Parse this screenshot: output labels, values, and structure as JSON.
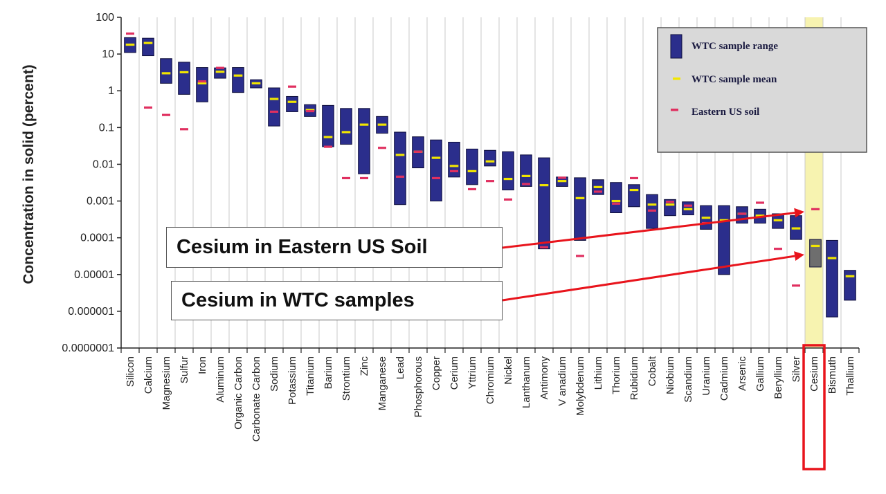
{
  "chart_data": {
    "type": "range-bar",
    "ylabel": "Concentration in solid (percent)",
    "yscale": "log",
    "ylim": [
      1e-07,
      100
    ],
    "yticks": [
      "100",
      "10",
      "1",
      "0.1",
      "0.01",
      "0.001",
      "0.0001",
      "0.00001",
      "0.000001",
      "0.0000001"
    ],
    "legend": {
      "placement": "top-right",
      "items": [
        "WTC sample range",
        "WTC sample mean",
        "Eastern US soil"
      ]
    },
    "colors": {
      "range": "#2b2e8c",
      "mean": "#f2e600",
      "soil": "#e03060",
      "highlight_band": "#f7f3b0",
      "callout_arrow": "#e8141c",
      "legend_bg": "#d9d9d9",
      "cesium_range": "#6e6e6e"
    },
    "highlight": "Cesium",
    "elements": [
      {
        "name": "Silicon",
        "min": 11,
        "max": 28,
        "mean": 18,
        "soil": 36
      },
      {
        "name": "Calcium",
        "min": 9,
        "max": 27,
        "mean": 20,
        "soil": 0.35
      },
      {
        "name": "Magnesium",
        "min": 1.6,
        "max": 7.5,
        "mean": 3,
        "soil": 0.22
      },
      {
        "name": "Sulfur",
        "min": 0.8,
        "max": 6,
        "mean": 3.2,
        "soil": 0.09
      },
      {
        "name": "Iron",
        "min": 0.5,
        "max": 4.3,
        "mean": 1.6,
        "soil": 1.8
      },
      {
        "name": "Aluminum",
        "min": 2.2,
        "max": 4.2,
        "mean": 3.3,
        "soil": 4.2
      },
      {
        "name": "Organic Carbon",
        "min": 0.9,
        "max": 4.3,
        "mean": 2.6,
        "soil": null
      },
      {
        "name": "Carbonate Carbon",
        "min": 1.2,
        "max": 2,
        "mean": 1.6,
        "soil": null
      },
      {
        "name": "Sodium",
        "min": 0.11,
        "max": 1.2,
        "mean": 0.6,
        "soil": 0.27
      },
      {
        "name": "Potassium",
        "min": 0.27,
        "max": 0.7,
        "mean": 0.5,
        "soil": 1.3
      },
      {
        "name": "Titanium",
        "min": 0.2,
        "max": 0.42,
        "mean": 0.3,
        "soil": 0.28
      },
      {
        "name": "Barium",
        "min": 0.03,
        "max": 0.4,
        "mean": 0.055,
        "soil": 0.03
      },
      {
        "name": "Strontium",
        "min": 0.035,
        "max": 0.33,
        "mean": 0.075,
        "soil": 0.0042
      },
      {
        "name": "Zinc",
        "min": 0.0055,
        "max": 0.33,
        "mean": 0.12,
        "soil": 0.0042
      },
      {
        "name": "Manganese",
        "min": 0.07,
        "max": 0.2,
        "mean": 0.12,
        "soil": 0.028
      },
      {
        "name": "Lead",
        "min": 0.0008,
        "max": 0.075,
        "mean": 0.018,
        "soil": 0.0046
      },
      {
        "name": "Phosphorous",
        "min": 0.008,
        "max": 0.056,
        "mean": 0.022,
        "soil": 0.022
      },
      {
        "name": "Copper",
        "min": 0.001,
        "max": 0.046,
        "mean": 0.015,
        "soil": 0.0042
      },
      {
        "name": "Cerium",
        "min": 0.0045,
        "max": 0.04,
        "mean": 0.009,
        "soil": 0.0065
      },
      {
        "name": "Yttrium",
        "min": 0.0028,
        "max": 0.026,
        "mean": 0.0065,
        "soil": 0.0021
      },
      {
        "name": "Chromium",
        "min": 0.009,
        "max": 0.024,
        "mean": 0.012,
        "soil": 0.0035
      },
      {
        "name": "Nickel",
        "min": 0.002,
        "max": 0.022,
        "mean": 0.004,
        "soil": 0.0011
      },
      {
        "name": "Lanthanum",
        "min": 0.0025,
        "max": 0.018,
        "mean": 0.0048,
        "soil": 0.0029
      },
      {
        "name": "Antimony",
        "min": 5e-05,
        "max": 0.015,
        "mean": 0.0027,
        "soil": 5.5e-05
      },
      {
        "name": "V    anadium",
        "min": 0.0025,
        "max": 0.0045,
        "mean": 0.0035,
        "soil": 0.0043
      },
      {
        "name": "Molybdenum",
        "min": 8.5e-05,
        "max": 0.0043,
        "mean": 0.0012,
        "soil": 3.2e-05
      },
      {
        "name": "Lithium",
        "min": 0.0015,
        "max": 0.0038,
        "mean": 0.0024,
        "soil": 0.0018
      },
      {
        "name": "Thorium",
        "min": 0.00048,
        "max": 0.0032,
        "mean": 0.001,
        "soil": 0.00085
      },
      {
        "name": "Rubidium",
        "min": 0.0007,
        "max": 0.0028,
        "mean": 0.002,
        "soil": 0.0042
      },
      {
        "name": "Cobalt",
        "min": 0.00018,
        "max": 0.0015,
        "mean": 0.0008,
        "soil": 0.00055
      },
      {
        "name": "Niobium",
        "min": 0.0004,
        "max": 0.0011,
        "mean": 0.0008,
        "soil": 0.00095
      },
      {
        "name": "Scandium",
        "min": 0.00042,
        "max": 0.00095,
        "mean": 0.0006,
        "soil": 0.00075
      },
      {
        "name": "Uranium",
        "min": 0.00017,
        "max": 0.00075,
        "mean": 0.00035,
        "soil": 0.00025
      },
      {
        "name": "Cadmium",
        "min": 1e-05,
        "max": 0.00075,
        "mean": 0.0003,
        "soil": null
      },
      {
        "name": "Arsenic",
        "min": 0.00025,
        "max": 0.0007,
        "mean": 0.00045,
        "soil": 0.00045
      },
      {
        "name": "Gallium",
        "min": 0.00025,
        "max": 0.0006,
        "mean": 0.0004,
        "soil": 0.0009
      },
      {
        "name": "Beryllium",
        "min": 0.00018,
        "max": 0.00045,
        "mean": 0.0003,
        "soil": 5e-05
      },
      {
        "name": "Silver",
        "min": 9e-05,
        "max": 0.0004,
        "mean": 0.00018,
        "soil": 5e-06
      },
      {
        "name": "Cesium",
        "min": 1.6e-05,
        "max": 9e-05,
        "mean": 6e-05,
        "soil": 0.0006
      },
      {
        "name": "Bismuth",
        "min": 7e-07,
        "max": 8.5e-05,
        "mean": 2.8e-05,
        "soil": null
      },
      {
        "name": "Thallium",
        "min": 2e-06,
        "max": 1.3e-05,
        "mean": 9e-06,
        "soil": null
      }
    ]
  },
  "callouts": {
    "soil": "Cesium in Eastern US Soil",
    "wtc": "Cesium in WTC samples"
  }
}
